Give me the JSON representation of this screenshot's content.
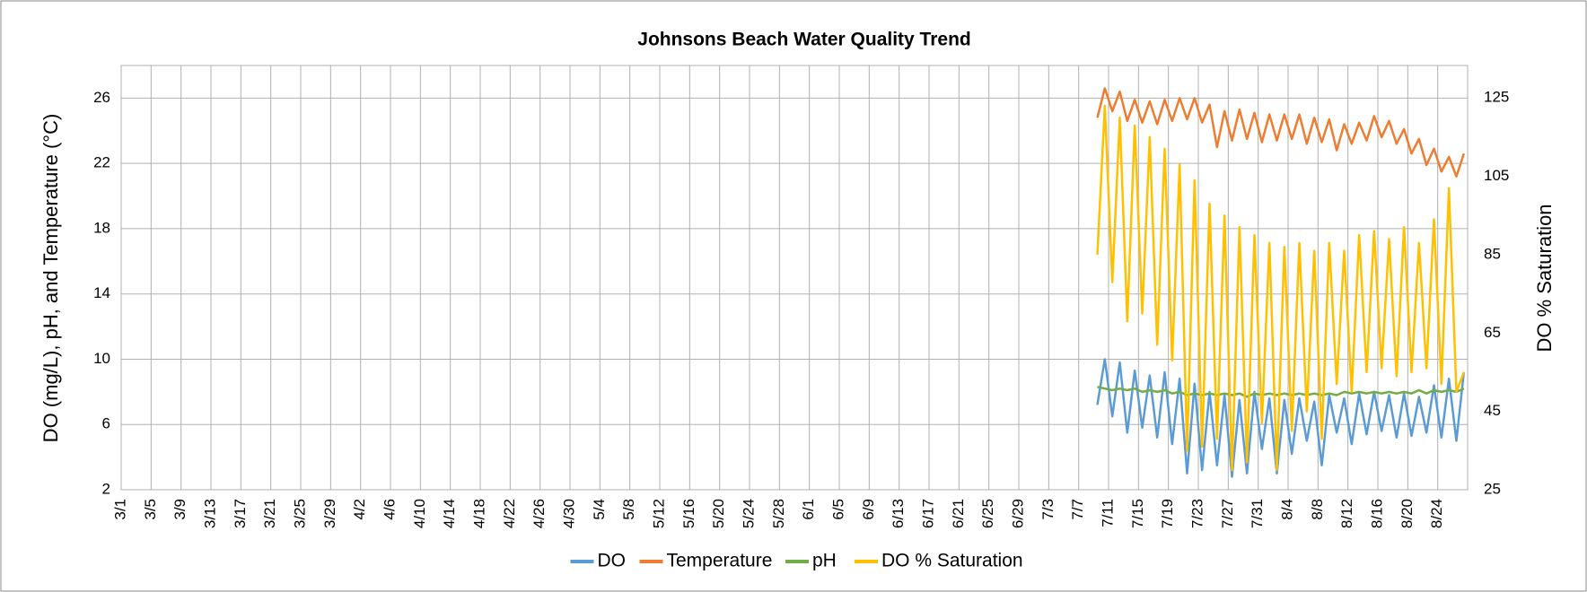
{
  "chart_data": {
    "type": "line",
    "title": "Johnsons Beach Water Quality Trend",
    "y_label": "DO (mg/L), pH, and Temperature (°C)",
    "y2_label": "DO % Saturation",
    "categories": [
      "3/1",
      null,
      null,
      null,
      "3/5",
      null,
      null,
      null,
      "3/9",
      null,
      null,
      null,
      "3/13",
      null,
      null,
      null,
      "3/17",
      null,
      null,
      null,
      "3/21",
      null,
      null,
      null,
      "3/25",
      null,
      null,
      null,
      "3/29",
      null,
      null,
      null,
      "4/2",
      null,
      null,
      null,
      "4/6",
      null,
      null,
      null,
      "4/10",
      null,
      null,
      null,
      "4/14",
      null,
      null,
      null,
      "4/18",
      null,
      null,
      null,
      "4/22",
      null,
      null,
      null,
      "4/26",
      null,
      null,
      null,
      "4/30",
      null,
      null,
      null,
      "5/4",
      null,
      null,
      null,
      "5/8",
      null,
      null,
      null,
      "5/12",
      null,
      null,
      null,
      "5/16",
      null,
      null,
      null,
      "5/20",
      null,
      null,
      null,
      "5/24",
      null,
      null,
      null,
      "5/28",
      null,
      null,
      null,
      "6/1",
      null,
      null,
      null,
      "6/5",
      null,
      null,
      null,
      "6/9",
      null,
      null,
      null,
      "6/13",
      null,
      null,
      null,
      "6/17",
      null,
      null,
      null,
      "6/21",
      null,
      null,
      null,
      "6/25",
      null,
      null,
      null,
      "6/29",
      null,
      null,
      null,
      "7/3",
      null,
      null,
      null,
      "7/7",
      null,
      null,
      null,
      "7/11",
      null,
      null,
      null,
      "7/15",
      null,
      null,
      null,
      "7/19",
      null,
      null,
      null,
      "7/23",
      null,
      null,
      null,
      "7/27",
      null,
      null,
      null,
      "7/31",
      null,
      null,
      null,
      "8/4",
      null,
      null,
      null,
      "8/8",
      null,
      null,
      null,
      "8/12",
      null,
      null,
      null,
      "8/16",
      null,
      null,
      null,
      "8/20",
      null,
      null,
      null,
      "8/24",
      null,
      null,
      null
    ],
    "series": [
      {
        "name": "DO",
        "color": "#5b9bd5",
        "values": [
          null,
          null,
          null,
          null,
          null,
          null,
          null,
          null,
          null,
          null,
          null,
          null,
          null,
          null,
          null,
          null,
          null,
          null,
          null,
          null,
          null,
          null,
          null,
          null,
          null,
          null,
          null,
          null,
          null,
          null,
          null,
          null,
          null,
          null,
          null,
          null,
          null,
          null,
          null,
          null,
          null,
          null,
          null,
          null,
          null,
          null,
          null,
          null,
          null,
          null,
          null,
          null,
          null,
          null,
          null,
          null,
          null,
          null,
          null,
          null,
          null,
          null,
          null,
          null,
          null,
          null,
          null,
          null,
          null,
          null,
          null,
          null,
          null,
          null,
          null,
          null,
          null,
          null,
          null,
          null,
          null,
          null,
          null,
          null,
          null,
          null,
          null,
          null,
          null,
          null,
          null,
          null,
          null,
          null,
          null,
          null,
          null,
          null,
          null,
          null,
          null,
          null,
          null,
          null,
          null,
          null,
          null,
          null,
          null,
          null,
          null,
          null,
          null,
          null,
          null,
          null,
          null,
          null,
          null,
          null,
          null,
          null,
          null,
          null,
          null,
          null,
          null,
          null,
          null,
          null,
          7.2,
          10.0,
          6.5,
          9.8,
          5.5,
          9.3,
          5.8,
          9.0,
          5.2,
          9.2,
          4.8,
          8.8,
          3.0,
          8.5,
          3.2,
          8.0,
          3.5,
          7.8,
          2.8,
          7.5,
          3.0,
          8.0,
          4.5,
          7.6,
          3.0,
          7.5,
          4.2,
          7.6,
          5.0,
          7.4,
          3.5,
          7.8,
          5.5,
          7.6,
          4.8,
          7.9,
          5.4,
          8.0,
          5.6,
          7.8,
          5.2,
          7.9,
          5.3,
          7.7,
          5.5,
          8.4,
          5.2,
          8.8,
          5.0,
          9.2
        ]
      },
      {
        "name": "Temperature",
        "color": "#ed7d31",
        "values": [
          null,
          null,
          null,
          null,
          null,
          null,
          null,
          null,
          null,
          null,
          null,
          null,
          null,
          null,
          null,
          null,
          null,
          null,
          null,
          null,
          null,
          null,
          null,
          null,
          null,
          null,
          null,
          null,
          null,
          null,
          null,
          null,
          null,
          null,
          null,
          null,
          null,
          null,
          null,
          null,
          null,
          null,
          null,
          null,
          null,
          null,
          null,
          null,
          null,
          null,
          null,
          null,
          null,
          null,
          null,
          null,
          null,
          null,
          null,
          null,
          null,
          null,
          null,
          null,
          null,
          null,
          null,
          null,
          null,
          null,
          null,
          null,
          null,
          null,
          null,
          null,
          null,
          null,
          null,
          null,
          null,
          null,
          null,
          null,
          null,
          null,
          null,
          null,
          null,
          null,
          null,
          null,
          null,
          null,
          null,
          null,
          null,
          null,
          null,
          null,
          null,
          null,
          null,
          null,
          null,
          null,
          null,
          null,
          null,
          null,
          null,
          null,
          null,
          null,
          null,
          null,
          null,
          null,
          null,
          null,
          null,
          null,
          null,
          null,
          null,
          null,
          null,
          null,
          null,
          null,
          24.8,
          26.6,
          25.2,
          26.4,
          24.6,
          25.9,
          24.5,
          25.8,
          24.4,
          25.9,
          24.6,
          26.0,
          24.7,
          26.0,
          24.5,
          25.6,
          23.0,
          25.2,
          23.4,
          25.3,
          23.5,
          25.1,
          23.3,
          25.0,
          23.4,
          25.0,
          23.5,
          25.0,
          23.2,
          24.8,
          23.3,
          24.7,
          22.8,
          24.4,
          23.2,
          24.5,
          23.4,
          24.9,
          23.6,
          24.6,
          23.2,
          24.1,
          22.6,
          23.5,
          21.9,
          22.9,
          21.5,
          22.4,
          21.2,
          22.6
        ]
      },
      {
        "name": "pH",
        "color": "#70ad47",
        "values": [
          null,
          null,
          null,
          null,
          null,
          null,
          null,
          null,
          null,
          null,
          null,
          null,
          null,
          null,
          null,
          null,
          null,
          null,
          null,
          null,
          null,
          null,
          null,
          null,
          null,
          null,
          null,
          null,
          null,
          null,
          null,
          null,
          null,
          null,
          null,
          null,
          null,
          null,
          null,
          null,
          null,
          null,
          null,
          null,
          null,
          null,
          null,
          null,
          null,
          null,
          null,
          null,
          null,
          null,
          null,
          null,
          null,
          null,
          null,
          null,
          null,
          null,
          null,
          null,
          null,
          null,
          null,
          null,
          null,
          null,
          null,
          null,
          null,
          null,
          null,
          null,
          null,
          null,
          null,
          null,
          null,
          null,
          null,
          null,
          null,
          null,
          null,
          null,
          null,
          null,
          null,
          null,
          null,
          null,
          null,
          null,
          null,
          null,
          null,
          null,
          null,
          null,
          null,
          null,
          null,
          null,
          null,
          null,
          null,
          null,
          null,
          null,
          null,
          null,
          null,
          null,
          null,
          null,
          null,
          null,
          null,
          null,
          null,
          null,
          null,
          null,
          null,
          null,
          null,
          null,
          8.3,
          8.2,
          8.1,
          8.2,
          8.1,
          8.2,
          8.0,
          8.1,
          8.0,
          8.1,
          7.9,
          8.0,
          7.8,
          7.9,
          7.8,
          7.9,
          7.8,
          7.9,
          7.8,
          7.9,
          7.7,
          7.9,
          7.8,
          7.9,
          7.8,
          7.9,
          7.8,
          7.9,
          7.8,
          7.9,
          7.8,
          7.9,
          7.8,
          8.0,
          7.9,
          8.0,
          7.9,
          8.0,
          7.9,
          8.0,
          7.9,
          8.0,
          7.9,
          8.1,
          7.9,
          8.1,
          8.0,
          8.1,
          8.0,
          8.2
        ]
      },
      {
        "name": "DO % Saturation",
        "color": "#ffc000",
        "axis": "y2",
        "values": [
          null,
          null,
          null,
          null,
          null,
          null,
          null,
          null,
          null,
          null,
          null,
          null,
          null,
          null,
          null,
          null,
          null,
          null,
          null,
          null,
          null,
          null,
          null,
          null,
          null,
          null,
          null,
          null,
          null,
          null,
          null,
          null,
          null,
          null,
          null,
          null,
          null,
          null,
          null,
          null,
          null,
          null,
          null,
          null,
          null,
          null,
          null,
          null,
          null,
          null,
          null,
          null,
          null,
          null,
          null,
          null,
          null,
          null,
          null,
          null,
          null,
          null,
          null,
          null,
          null,
          null,
          null,
          null,
          null,
          null,
          null,
          null,
          null,
          null,
          null,
          null,
          null,
          null,
          null,
          null,
          null,
          null,
          null,
          null,
          null,
          null,
          null,
          null,
          null,
          null,
          null,
          null,
          null,
          null,
          null,
          null,
          null,
          null,
          null,
          null,
          null,
          null,
          null,
          null,
          null,
          null,
          null,
          null,
          null,
          null,
          null,
          null,
          null,
          null,
          null,
          null,
          null,
          null,
          null,
          null,
          null,
          null,
          null,
          null,
          null,
          null,
          null,
          null,
          null,
          null,
          85,
          123,
          78,
          120,
          68,
          118,
          70,
          115,
          62,
          112,
          58,
          108,
          35,
          104,
          36,
          98,
          38,
          95,
          30,
          92,
          32,
          90,
          42,
          88,
          30,
          87,
          40,
          88,
          45,
          86,
          38,
          88,
          52,
          86,
          50,
          90,
          55,
          91,
          56,
          89,
          54,
          92,
          55,
          88,
          56,
          94,
          52,
          102,
          50,
          55
        ]
      }
    ],
    "ylim": [
      2,
      28
    ],
    "yticks": [
      2,
      6,
      10,
      14,
      18,
      22,
      26
    ],
    "y2lim": [
      25,
      133.3
    ],
    "y2ticks": [
      25,
      45,
      65,
      85,
      105,
      125
    ],
    "grid": true,
    "legend": "bottom"
  }
}
